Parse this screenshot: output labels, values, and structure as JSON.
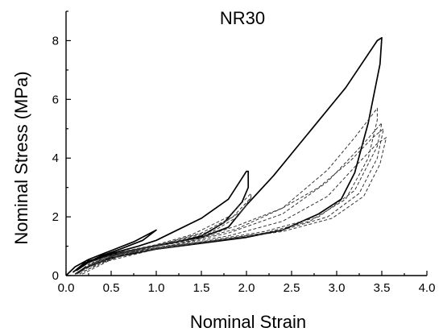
{
  "chart_data": {
    "type": "line",
    "title": "NR30",
    "xlabel": "Nominal Strain",
    "ylabel": "Nominal Stress (MPa)",
    "xlim": [
      0.0,
      4.0
    ],
    "ylim": [
      0,
      9.0
    ],
    "xticks": [
      0.0,
      0.5,
      1.0,
      1.5,
      2.0,
      2.5,
      3.0,
      3.5,
      4.0
    ],
    "xtick_labels": [
      "0.0",
      "0.5",
      "1.0",
      "1.5",
      "2.0",
      "2.5",
      "3.0",
      "3.5",
      "4.0"
    ],
    "yticks": [
      0,
      2,
      4,
      6,
      8
    ],
    "ytick_labels": [
      "0",
      "2",
      "4",
      "6",
      "8"
    ],
    "grid": false,
    "legend": "none",
    "colors": {
      "solid": "#000000",
      "dashed": "#333333"
    },
    "series": [
      {
        "style": "solid",
        "points": [
          [
            0.0,
            0.0
          ],
          [
            0.1,
            0.3
          ],
          [
            0.25,
            0.55
          ],
          [
            0.5,
            0.85
          ],
          [
            0.75,
            1.15
          ],
          [
            1.0,
            1.55
          ],
          [
            1.0,
            1.55
          ],
          [
            0.85,
            1.2
          ],
          [
            0.6,
            0.9
          ],
          [
            0.4,
            0.68
          ],
          [
            0.2,
            0.4
          ],
          [
            0.08,
            0.12
          ],
          [
            0.2,
            0.42
          ],
          [
            0.5,
            0.75
          ],
          [
            0.8,
            1.0
          ],
          [
            1.0,
            1.2
          ],
          [
            1.2,
            1.5
          ],
          [
            1.5,
            1.95
          ],
          [
            1.8,
            2.6
          ],
          [
            2.0,
            3.55
          ],
          [
            2.02,
            3.55
          ],
          [
            2.02,
            3.0
          ],
          [
            1.95,
            2.5
          ],
          [
            1.75,
            1.8
          ],
          [
            1.5,
            1.35
          ],
          [
            1.2,
            1.12
          ],
          [
            0.8,
            0.9
          ],
          [
            0.5,
            0.7
          ],
          [
            0.25,
            0.45
          ],
          [
            0.12,
            0.18
          ],
          [
            0.25,
            0.5
          ],
          [
            0.5,
            0.72
          ],
          [
            1.0,
            1.02
          ],
          [
            1.5,
            1.3
          ],
          [
            1.8,
            1.65
          ],
          [
            2.0,
            2.4
          ],
          [
            2.3,
            3.4
          ],
          [
            2.7,
            4.9
          ],
          [
            3.1,
            6.4
          ],
          [
            3.45,
            8.0
          ],
          [
            3.5,
            8.1
          ],
          [
            3.48,
            7.2
          ],
          [
            3.35,
            5.2
          ],
          [
            3.2,
            3.5
          ],
          [
            3.05,
            2.6
          ],
          [
            2.8,
            2.1
          ],
          [
            2.4,
            1.55
          ],
          [
            2.0,
            1.3
          ],
          [
            1.5,
            1.1
          ],
          [
            1.0,
            0.9
          ],
          [
            0.5,
            0.6
          ],
          [
            0.2,
            0.25
          ],
          [
            0.1,
            0.05
          ]
        ]
      },
      {
        "style": "dashed",
        "points": [
          [
            0.1,
            0.05
          ],
          [
            0.3,
            0.5
          ],
          [
            0.6,
            0.8
          ],
          [
            1.0,
            1.05
          ],
          [
            1.4,
            1.4
          ],
          [
            1.8,
            2.0
          ],
          [
            2.05,
            2.8
          ],
          [
            2.05,
            2.6
          ],
          [
            1.9,
            2.0
          ],
          [
            1.6,
            1.45
          ],
          [
            1.2,
            1.15
          ],
          [
            0.7,
            0.82
          ],
          [
            0.3,
            0.45
          ],
          [
            0.15,
            0.1
          ],
          [
            0.4,
            0.6
          ],
          [
            0.9,
            0.95
          ],
          [
            1.4,
            1.2
          ],
          [
            1.9,
            1.6
          ],
          [
            2.4,
            2.3
          ],
          [
            2.9,
            3.6
          ],
          [
            3.2,
            4.7
          ],
          [
            3.45,
            5.7
          ],
          [
            3.45,
            5.3
          ],
          [
            3.35,
            4.0
          ],
          [
            3.1,
            2.6
          ],
          [
            2.7,
            1.85
          ],
          [
            2.2,
            1.45
          ],
          [
            1.6,
            1.18
          ],
          [
            1.0,
            0.95
          ],
          [
            0.5,
            0.65
          ],
          [
            0.2,
            0.2
          ]
        ]
      },
      {
        "style": "dashed",
        "points": [
          [
            0.12,
            0.05
          ],
          [
            0.35,
            0.5
          ],
          [
            0.7,
            0.85
          ],
          [
            1.1,
            1.1
          ],
          [
            1.5,
            1.45
          ],
          [
            1.85,
            2.0
          ],
          [
            2.05,
            2.65
          ],
          [
            1.95,
            2.2
          ],
          [
            1.6,
            1.5
          ],
          [
            1.1,
            1.1
          ],
          [
            0.6,
            0.78
          ],
          [
            0.25,
            0.35
          ],
          [
            0.6,
            0.75
          ],
          [
            1.2,
            1.05
          ],
          [
            1.8,
            1.45
          ],
          [
            2.4,
            2.1
          ],
          [
            2.9,
            3.2
          ],
          [
            3.3,
            4.5
          ],
          [
            3.5,
            5.2
          ],
          [
            3.45,
            4.4
          ],
          [
            3.2,
            2.9
          ],
          [
            2.8,
            2.0
          ],
          [
            2.2,
            1.5
          ],
          [
            1.5,
            1.15
          ],
          [
            0.8,
            0.85
          ],
          [
            0.3,
            0.35
          ]
        ]
      },
      {
        "style": "dashed",
        "points": [
          [
            0.15,
            0.05
          ],
          [
            0.5,
            0.65
          ],
          [
            1.0,
            1.0
          ],
          [
            1.5,
            1.3
          ],
          [
            1.9,
            1.7
          ],
          [
            2.4,
            2.3
          ],
          [
            2.8,
            3.0
          ],
          [
            3.15,
            3.9
          ],
          [
            3.4,
            4.7
          ],
          [
            3.52,
            5.0
          ],
          [
            3.45,
            4.0
          ],
          [
            3.25,
            2.8
          ],
          [
            2.9,
            2.0
          ],
          [
            2.4,
            1.55
          ],
          [
            1.8,
            1.25
          ],
          [
            1.2,
            1.0
          ],
          [
            0.6,
            0.7
          ],
          [
            0.2,
            0.15
          ]
        ]
      },
      {
        "style": "dashed",
        "points": [
          [
            0.18,
            0.05
          ],
          [
            0.6,
            0.7
          ],
          [
            1.2,
            1.05
          ],
          [
            1.8,
            1.35
          ],
          [
            2.4,
            1.85
          ],
          [
            2.9,
            2.7
          ],
          [
            3.2,
            3.7
          ],
          [
            3.45,
            4.5
          ],
          [
            3.55,
            4.7
          ],
          [
            3.48,
            3.8
          ],
          [
            3.3,
            2.7
          ],
          [
            2.95,
            1.95
          ],
          [
            2.4,
            1.5
          ],
          [
            1.7,
            1.2
          ],
          [
            1.0,
            0.9
          ],
          [
            0.4,
            0.45
          ]
        ]
      }
    ]
  }
}
